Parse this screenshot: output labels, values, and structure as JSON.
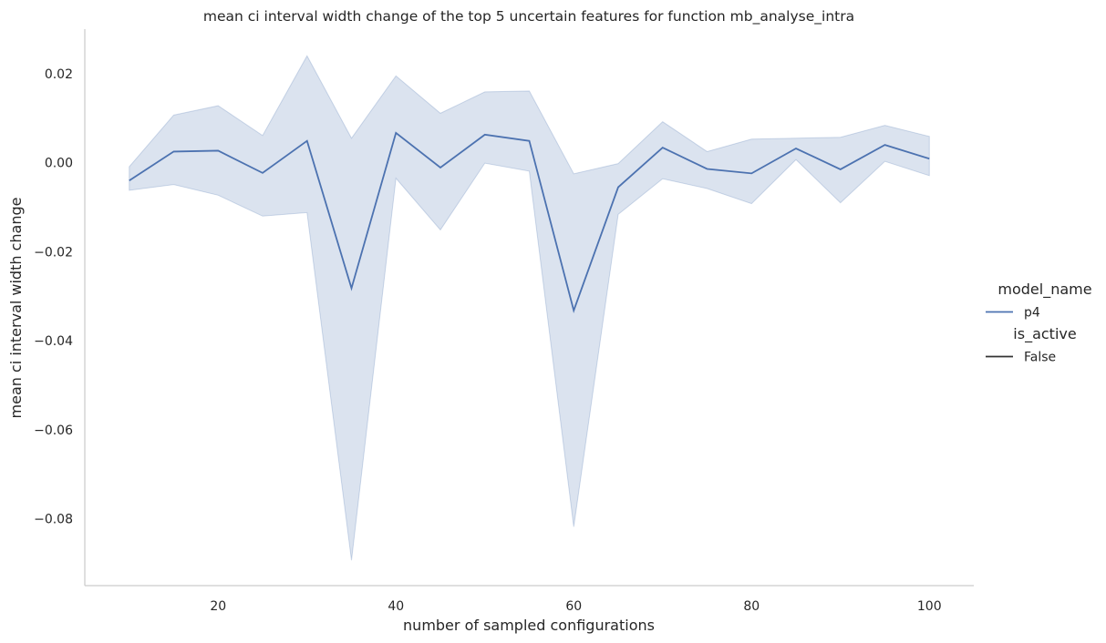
{
  "chart_data": {
    "type": "line",
    "title": "mean ci interval width change of the top 5 uncertain features for function mb_analyse_intra",
    "xlabel": "number of sampled configurations",
    "ylabel": "mean ci interval width change",
    "xlim": [
      5,
      105
    ],
    "ylim": [
      -0.095,
      0.03
    ],
    "xticks": [
      20,
      40,
      60,
      80,
      100
    ],
    "xtick_labels": [
      "20",
      "40",
      "60",
      "80",
      "100"
    ],
    "yticks": [
      0.02,
      0.0,
      -0.02,
      -0.04,
      -0.06,
      -0.08
    ],
    "ytick_labels": [
      "0.02",
      "0.00",
      "−0.02",
      "−0.04",
      "−0.06",
      "−0.08"
    ],
    "grid": false,
    "legend": {
      "placement": "right",
      "entries": [
        {
          "kind": "title",
          "label": "model_name"
        },
        {
          "kind": "line",
          "label": "p4",
          "color": "#4c72b0"
        },
        {
          "kind": "title",
          "label": "is_active"
        },
        {
          "kind": "line",
          "label": "False",
          "color": "#333333"
        }
      ]
    },
    "series": [
      {
        "color": "#4c72b0",
        "band_color": "#4c72b0",
        "x": [
          10,
          15,
          20,
          25,
          30,
          35,
          40,
          45,
          50,
          55,
          60,
          65,
          70,
          75,
          80,
          85,
          90,
          95,
          100
        ],
        "y": [
          -0.004,
          0.0025,
          0.0027,
          -0.0023,
          0.0049,
          -0.0282,
          0.0067,
          -0.0011,
          0.0063,
          0.0049,
          -0.0332,
          -0.0055,
          0.0034,
          -0.0014,
          -0.0024,
          0.0032,
          -0.0015,
          0.004,
          0.0009
        ],
        "ci_low": [
          -0.0062,
          -0.0049,
          -0.0073,
          -0.012,
          -0.0112,
          -0.0893,
          -0.0035,
          -0.0151,
          -0.0001,
          -0.0019,
          -0.0818,
          -0.0116,
          -0.0036,
          -0.0058,
          -0.0092,
          0.0007,
          -0.009,
          0.0003,
          -0.0029
        ],
        "ci_high": [
          -0.0009,
          0.0107,
          0.0128,
          0.0061,
          0.024,
          0.0055,
          0.0195,
          0.0111,
          0.0159,
          0.0161,
          -0.0025,
          -0.0002,
          0.0092,
          0.0025,
          0.0053,
          0.0055,
          0.0057,
          0.0084,
          0.0059
        ]
      }
    ]
  }
}
